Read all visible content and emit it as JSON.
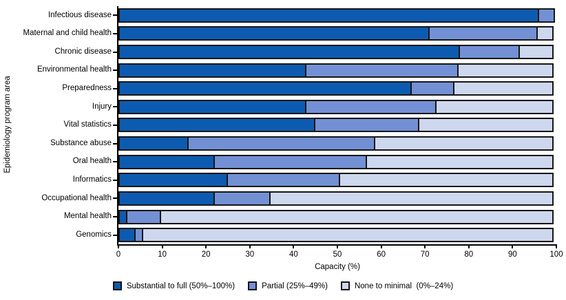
{
  "figure": {
    "background": "#ffffff",
    "axis_color": "#000000",
    "outline_color": "#161616"
  },
  "chart_data": {
    "type": "bar",
    "orientation": "horizontal",
    "stacked": true,
    "title": "",
    "xlabel": "Capacity (%)",
    "ylabel": "Epidemiology program area",
    "xlim": [
      0,
      100
    ],
    "xticks": [
      0,
      10,
      20,
      30,
      40,
      50,
      60,
      70,
      80,
      90,
      100
    ],
    "grid": false,
    "legend_position": "bottom",
    "categories": [
      "Infectious disease",
      "Maternal and child health",
      "Chronic disease",
      "Environmental health",
      "Preparedness",
      "Injury",
      "Vital statistics",
      "Substance abuse",
      "Oral health",
      "Informatics",
      "Occupational health",
      "Mental health",
      "Genomics"
    ],
    "series": [
      {
        "name": "Substantial to full (50%–100%)",
        "color": "#0d5bb0",
        "values": [
          96,
          71,
          78,
          43,
          67,
          43,
          45,
          16,
          22,
          25,
          22,
          2,
          4
        ]
      },
      {
        "name": "Partial (25%–49%)",
        "color": "#7390d4",
        "values": [
          4,
          25,
          14,
          35,
          10,
          30,
          24,
          43,
          35,
          26,
          13,
          8,
          2
        ]
      },
      {
        "name": "None to minimal  (0%–24%)",
        "color": "#cdd7ee",
        "values": [
          0,
          4,
          8,
          22,
          23,
          27,
          31,
          41,
          43,
          49,
          65,
          90,
          94
        ]
      }
    ]
  }
}
